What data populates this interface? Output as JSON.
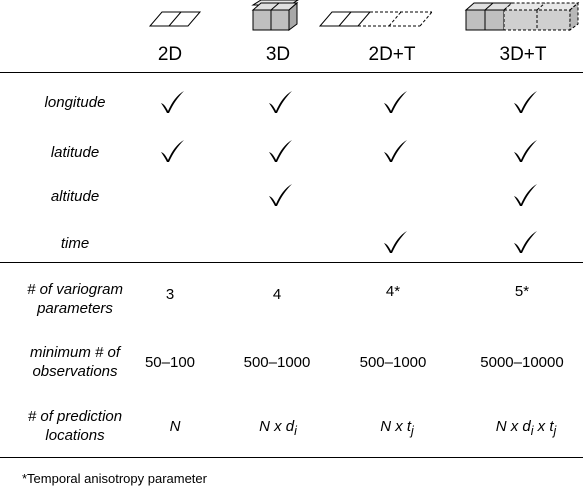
{
  "columns": [
    {
      "key": "2d",
      "label": "2D",
      "icon": "flat-2-cell-icon"
    },
    {
      "key": "3d",
      "label": "3D",
      "icon": "cube-2-cell-icon"
    },
    {
      "key": "2dt",
      "label": "2D+T",
      "icon": "flat-4-cell-dashed-icon"
    },
    {
      "key": "3dt",
      "label": "3D+T",
      "icon": "cube-4-cell-dashed-icon"
    }
  ],
  "rows": {
    "longitude": {
      "label": "longitude",
      "checks": [
        true,
        true,
        true,
        true
      ]
    },
    "latitude": {
      "label": "latitude",
      "checks": [
        true,
        true,
        true,
        true
      ]
    },
    "altitude": {
      "label": "altitude",
      "checks": [
        false,
        true,
        false,
        true
      ]
    },
    "time": {
      "label": "time",
      "checks": [
        false,
        false,
        true,
        true
      ]
    }
  },
  "variogram": {
    "label_line1": "# of variogram",
    "label_line2": "parameters",
    "values": [
      "3",
      "4",
      "4*",
      "5*"
    ]
  },
  "observations": {
    "label_line1": "minimum # of",
    "label_line2": "observations",
    "values": [
      "50–100",
      "500–1000",
      "500–1000",
      "5000–10000"
    ]
  },
  "prediction": {
    "label_line1": "# of prediction",
    "label_line2": "locations",
    "values": [
      {
        "base": "N",
        "sub": ""
      },
      {
        "base": "N x d",
        "sub": "i"
      },
      {
        "base": "N x t",
        "sub": "j"
      },
      {
        "base": "N x d",
        "sub": "i",
        "base2": " x t",
        "sub2": "j"
      }
    ]
  },
  "footnote": "*Temporal anisotropy parameter",
  "colors": {
    "cube_fill": "#bfbfbf",
    "line": "#000000"
  }
}
